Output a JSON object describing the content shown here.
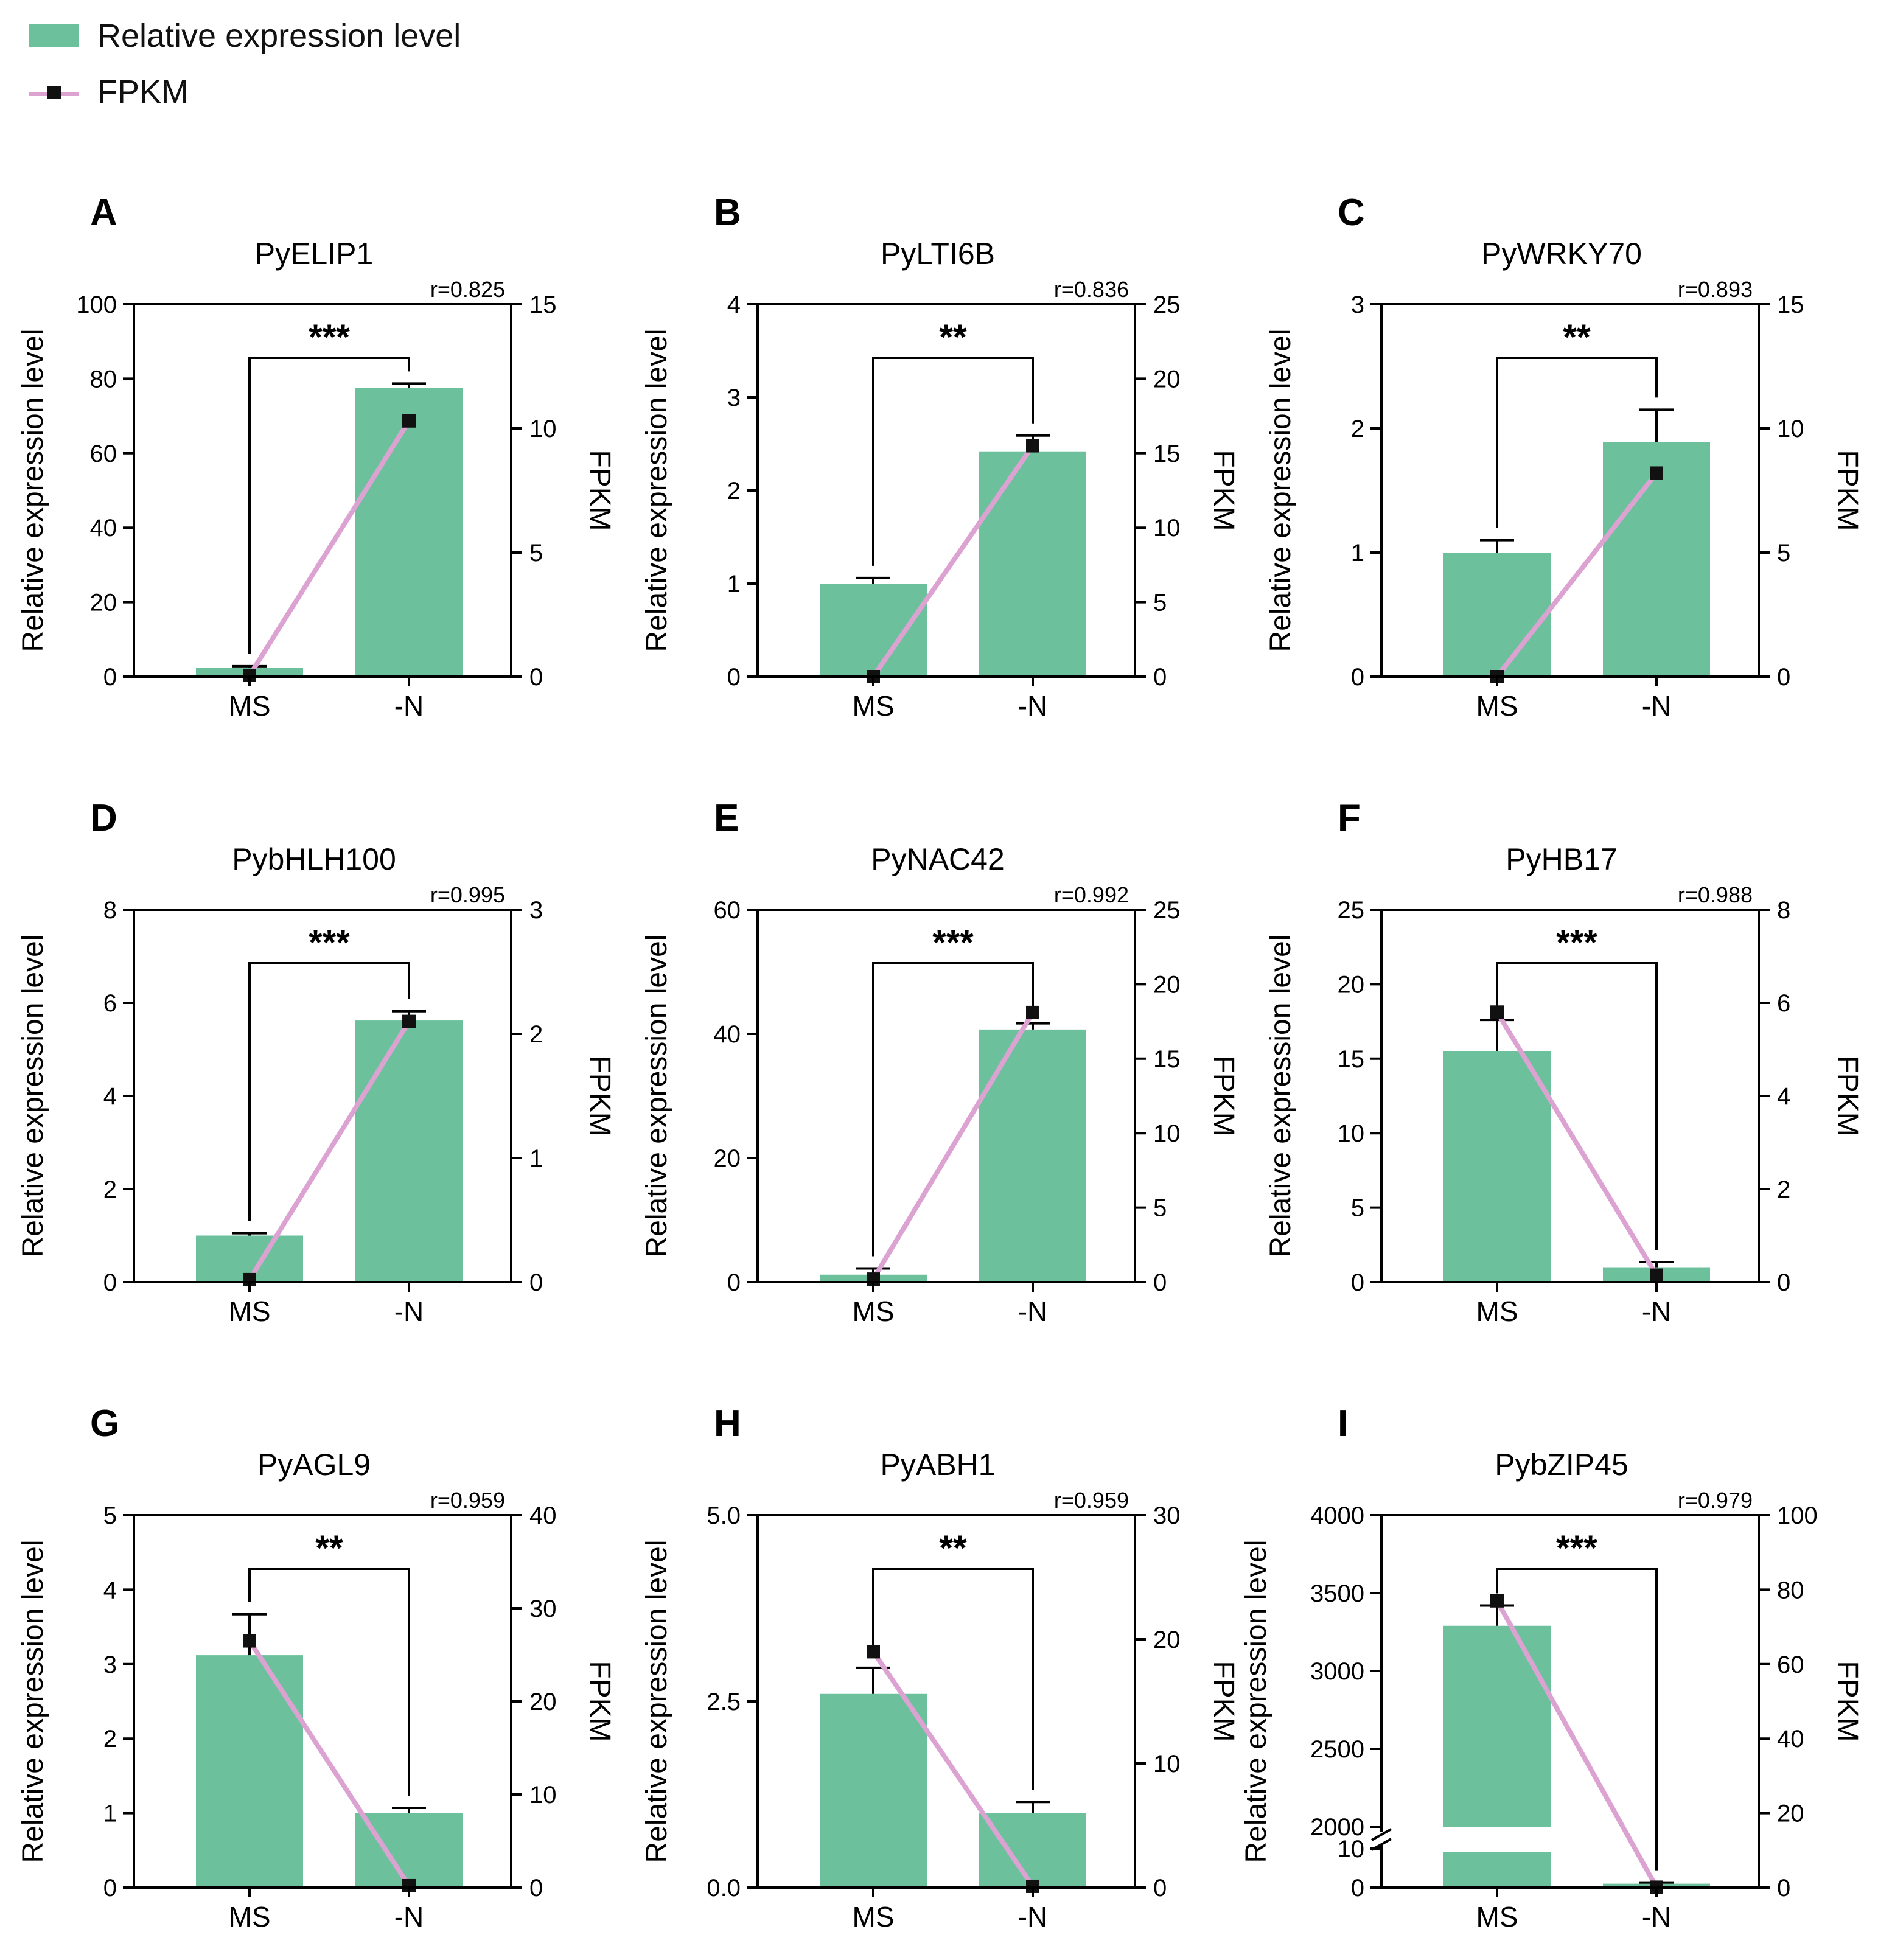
{
  "legend": {
    "bar_label": "Relative expression level",
    "line_label": "FPKM",
    "bar_color": "#6cc19c",
    "line_color": "#dca3d2",
    "marker_color": "#111111"
  },
  "chart_data": [
    {
      "panel": "A",
      "type": "bar",
      "title": "PyELIP1",
      "r_label": "r=0.825",
      "categories": [
        "MS",
        "-N"
      ],
      "ylabel": "Relative expression level",
      "y2label": "FPKM",
      "ylim": [
        0,
        100
      ],
      "yticks": [
        0,
        20,
        40,
        60,
        80,
        100
      ],
      "ytick_labels": [
        "0",
        "20",
        "40",
        "60",
        "80",
        "100"
      ],
      "y2lim": [
        0,
        15
      ],
      "y2ticks": [
        0,
        5,
        10,
        15
      ],
      "y2tick_labels": [
        "0",
        "5",
        "10",
        "15"
      ],
      "series": [
        {
          "name": "Relative expression level",
          "axis": "left",
          "values": [
            2.3,
            77.5
          ],
          "errors": [
            0.5,
            1.2
          ]
        },
        {
          "name": "FPKM",
          "axis": "right",
          "values": [
            0.05,
            10.3
          ]
        }
      ],
      "significance": "***"
    },
    {
      "panel": "B",
      "type": "bar",
      "title": "PyLTI6B",
      "r_label": "r=0.836",
      "categories": [
        "MS",
        "-N"
      ],
      "ylabel": "Relative expression level",
      "y2label": "FPKM",
      "ylim": [
        0,
        4
      ],
      "yticks": [
        0,
        1,
        2,
        3,
        4
      ],
      "ytick_labels": [
        "0",
        "1",
        "2",
        "3",
        "4"
      ],
      "y2lim": [
        0,
        25
      ],
      "y2ticks": [
        0,
        5,
        10,
        15,
        20,
        25
      ],
      "y2tick_labels": [
        "0",
        "5",
        "10",
        "15",
        "20",
        "25"
      ],
      "series": [
        {
          "name": "Relative expression level",
          "axis": "left",
          "values": [
            1.0,
            2.42
          ],
          "errors": [
            0.06,
            0.17
          ]
        },
        {
          "name": "FPKM",
          "axis": "right",
          "values": [
            0.0,
            15.5
          ]
        }
      ],
      "significance": "**"
    },
    {
      "panel": "C",
      "type": "bar",
      "title": "PyWRKY70",
      "r_label": "r=0.893",
      "categories": [
        "MS",
        "-N"
      ],
      "ylabel": "Relative expression level",
      "y2label": "FPKM",
      "ylim": [
        0,
        3
      ],
      "yticks": [
        0,
        1,
        2,
        3
      ],
      "ytick_labels": [
        "0",
        "1",
        "2",
        "3"
      ],
      "y2lim": [
        0,
        15
      ],
      "y2ticks": [
        0,
        5,
        10,
        15
      ],
      "y2tick_labels": [
        "0",
        "5",
        "10",
        "15"
      ],
      "series": [
        {
          "name": "Relative expression level",
          "axis": "left",
          "values": [
            1.0,
            1.89
          ],
          "errors": [
            0.1,
            0.26
          ]
        },
        {
          "name": "FPKM",
          "axis": "right",
          "values": [
            0.0,
            8.2
          ]
        }
      ],
      "significance": "**"
    },
    {
      "panel": "D",
      "type": "bar",
      "title": "PybHLH100",
      "r_label": "r=0.995",
      "categories": [
        "MS",
        "-N"
      ],
      "ylabel": "Relative expression level",
      "y2label": "FPKM",
      "ylim": [
        0,
        8
      ],
      "yticks": [
        0,
        2,
        4,
        6,
        8
      ],
      "ytick_labels": [
        "0",
        "2",
        "4",
        "6",
        "8"
      ],
      "y2lim": [
        0,
        3
      ],
      "y2ticks": [
        0,
        1,
        2,
        3
      ],
      "y2tick_labels": [
        "0",
        "1",
        "2",
        "3"
      ],
      "series": [
        {
          "name": "Relative expression level",
          "axis": "left",
          "values": [
            1.0,
            5.62
          ],
          "errors": [
            0.05,
            0.2
          ]
        },
        {
          "name": "FPKM",
          "axis": "right",
          "values": [
            0.02,
            2.1
          ]
        }
      ],
      "significance": "***"
    },
    {
      "panel": "E",
      "type": "bar",
      "title": "PyNAC42",
      "r_label": "r=0.992",
      "categories": [
        "MS",
        "-N"
      ],
      "ylabel": "Relative expression level",
      "y2label": "FPKM",
      "ylim": [
        0,
        60
      ],
      "yticks": [
        0,
        20,
        40,
        60
      ],
      "ytick_labels": [
        "0",
        "20",
        "40",
        "60"
      ],
      "y2lim": [
        0,
        25
      ],
      "y2ticks": [
        0,
        5,
        10,
        15,
        20,
        25
      ],
      "y2tick_labels": [
        "0",
        "5",
        "10",
        "15",
        "20",
        "25"
      ],
      "series": [
        {
          "name": "Relative expression level",
          "axis": "left",
          "values": [
            1.2,
            40.7
          ],
          "errors": [
            1.0,
            1.0
          ]
        },
        {
          "name": "FPKM",
          "axis": "right",
          "values": [
            0.2,
            18.1
          ]
        }
      ],
      "significance": "***"
    },
    {
      "panel": "F",
      "type": "bar",
      "title": "PyHB17",
      "r_label": "r=0.988",
      "categories": [
        "MS",
        "-N"
      ],
      "ylabel": "Relative expression level",
      "y2label": "FPKM",
      "ylim": [
        0,
        25
      ],
      "yticks": [
        0,
        5,
        10,
        15,
        20,
        25
      ],
      "ytick_labels": [
        "0",
        "5",
        "10",
        "15",
        "20",
        "25"
      ],
      "y2lim": [
        0,
        8
      ],
      "y2ticks": [
        0,
        2,
        4,
        6,
        8
      ],
      "y2tick_labels": [
        "0",
        "2",
        "4",
        "6",
        "8"
      ],
      "series": [
        {
          "name": "Relative expression level",
          "axis": "left",
          "values": [
            15.5,
            1.0
          ],
          "errors": [
            2.1,
            0.35
          ]
        },
        {
          "name": "FPKM",
          "axis": "right",
          "values": [
            5.8,
            0.15
          ]
        }
      ],
      "significance": "***"
    },
    {
      "panel": "G",
      "type": "bar",
      "title": "PyAGL9",
      "r_label": "r=0.959",
      "categories": [
        "MS",
        "-N"
      ],
      "ylabel": "Relative expression level",
      "y2label": "FPKM",
      "ylim": [
        0,
        5
      ],
      "yticks": [
        0,
        1,
        2,
        3,
        4,
        5
      ],
      "ytick_labels": [
        "0",
        "1",
        "2",
        "3",
        "4",
        "5"
      ],
      "y2lim": [
        0,
        40
      ],
      "y2ticks": [
        0,
        10,
        20,
        30,
        40
      ],
      "y2tick_labels": [
        "0",
        "10",
        "20",
        "30",
        "40"
      ],
      "series": [
        {
          "name": "Relative expression level",
          "axis": "left",
          "values": [
            3.12,
            1.0
          ],
          "errors": [
            0.55,
            0.07
          ]
        },
        {
          "name": "FPKM",
          "axis": "right",
          "values": [
            26.5,
            0.2
          ]
        }
      ],
      "significance": "**"
    },
    {
      "panel": "H",
      "type": "bar",
      "title": "PyABH1",
      "r_label": "r=0.959",
      "categories": [
        "MS",
        "-N"
      ],
      "ylabel": "Relative expression level",
      "y2label": "FPKM",
      "ylim": [
        0,
        5
      ],
      "yticks": [
        0,
        2.5,
        5
      ],
      "ytick_labels": [
        "0.0",
        "2.5",
        "5.0"
      ],
      "y2lim": [
        0,
        30
      ],
      "y2ticks": [
        0,
        10,
        20,
        30
      ],
      "y2tick_labels": [
        "0",
        "10",
        "20",
        "30"
      ],
      "series": [
        {
          "name": "Relative expression level",
          "axis": "left",
          "values": [
            2.6,
            1.0
          ],
          "errors": [
            0.35,
            0.15
          ]
        },
        {
          "name": "FPKM",
          "axis": "right",
          "values": [
            19.0,
            0.1
          ]
        }
      ],
      "significance": "**"
    },
    {
      "panel": "I",
      "type": "bar",
      "title": "PybZIP45",
      "r_label": "r=0.979",
      "categories": [
        "MS",
        "-N"
      ],
      "ylabel": "Relative expression level",
      "y2label": "FPKM",
      "broken_axis": true,
      "ylim": [
        0,
        4000
      ],
      "yticks": [
        0,
        10,
        2000,
        2500,
        3000,
        3500,
        4000
      ],
      "ytick_labels": [
        "0",
        "10",
        "2000",
        "2500",
        "3000",
        "3500",
        "4000"
      ],
      "y2lim": [
        0,
        100
      ],
      "y2ticks": [
        0,
        20,
        40,
        60,
        80,
        100
      ],
      "y2tick_labels": [
        "0",
        "20",
        "40",
        "60",
        "80",
        "100"
      ],
      "series": [
        {
          "name": "Relative expression level",
          "axis": "left",
          "values": [
            3290,
            1.0
          ],
          "errors": [
            130,
            0.3
          ]
        },
        {
          "name": "FPKM",
          "axis": "right",
          "values": [
            77.0,
            0.1
          ]
        }
      ],
      "significance": "***"
    }
  ]
}
